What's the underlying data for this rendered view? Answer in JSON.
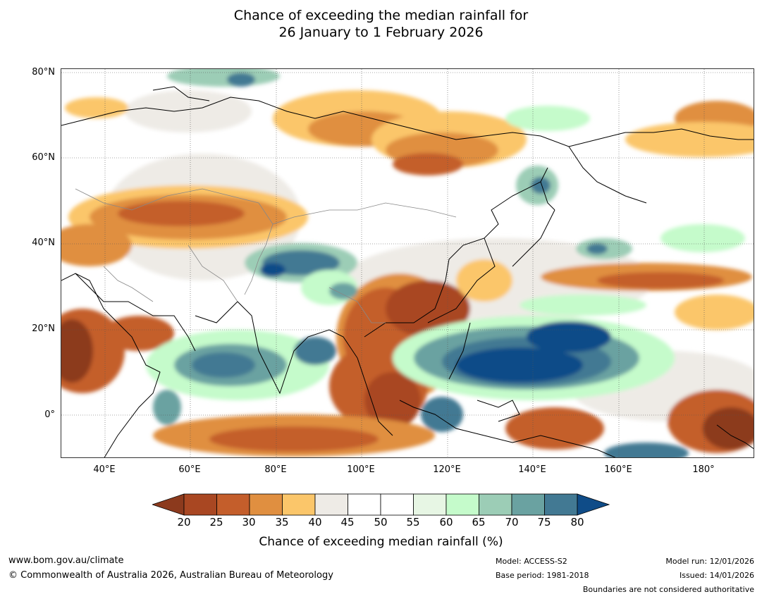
{
  "title": {
    "line1": "Chance of exceeding the median rainfall for",
    "line2": "26 January to 1 February 2026"
  },
  "map": {
    "lat_labels": [
      "80°N",
      "60°N",
      "40°N",
      "20°N",
      "0°"
    ],
    "lon_labels": [
      "40°E",
      "60°E",
      "80°E",
      "100°E",
      "120°E",
      "140°E",
      "160°E",
      "180°"
    ]
  },
  "legend": {
    "title": "Chance of exceeding median rainfall (%)",
    "ticks": [
      "20",
      "25",
      "30",
      "35",
      "40",
      "45",
      "50",
      "55",
      "60",
      "65",
      "70",
      "75",
      "80"
    ],
    "colors": [
      "#8c3a1d",
      "#a94722",
      "#c45e2b",
      "#e08f40",
      "#fbc66a",
      "#eeebe6",
      "#ffffff",
      "#ffffff",
      "#e7f6e4",
      "#c5fbcb",
      "#9ccdb6",
      "#6aa2a1",
      "#427993",
      "#0f4c88"
    ]
  },
  "footer": {
    "url": "www.bom.gov.au/climate",
    "copyright": "© Commonwealth of Australia 2026, Australian Bureau of Meteorology",
    "model": "Model: ACCESS-S2",
    "base_period": "Base period: 1981-2018",
    "model_run": "Model run: 12/01/2026",
    "issued": "Issued: 14/01/2026",
    "disclaimer": "Boundaries are not considered authoritative"
  }
}
